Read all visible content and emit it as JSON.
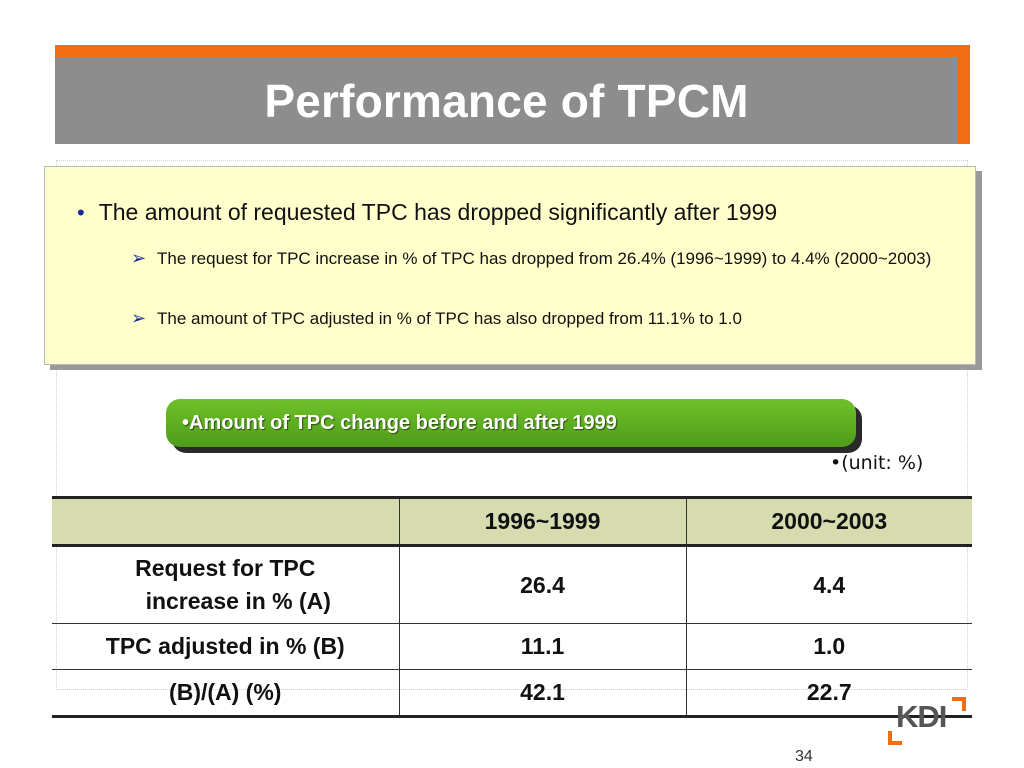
{
  "slide": {
    "title": "Performance of TPCM",
    "page_number": "34",
    "accent_color": "#f06d12"
  },
  "bullets": {
    "main": {
      "icon": "bullet-dot",
      "text": "The amount of requested TPC has dropped significantly after 1999"
    },
    "sub": [
      {
        "icon": "arrow-right",
        "text": "The request for TPC increase in % of TPC has dropped from 26.4% (1996~1999) to 4.4% (2000~2003)"
      },
      {
        "icon": "arrow-right",
        "text": "The amount of TPC adjusted in % of TPC has also dropped from 11.1% to 1.0"
      }
    ]
  },
  "section_label": "•Amount of TPC change before and after 1999",
  "unit_note": "•(unit: %)",
  "table": {
    "headers": [
      "",
      "1996~1999",
      "2000~2003"
    ],
    "rows": [
      {
        "label_line1": "Request for TPC",
        "label_line2": "increase in % (A)",
        "values": [
          "26.4",
          "4.4"
        ]
      },
      {
        "label": "TPC adjusted in % (B)",
        "values": [
          "11.1",
          "1.0"
        ]
      },
      {
        "label": "(B)/(A) (%)",
        "values": [
          "42.1",
          "22.7"
        ]
      }
    ]
  },
  "logo": {
    "text": "KDI"
  }
}
